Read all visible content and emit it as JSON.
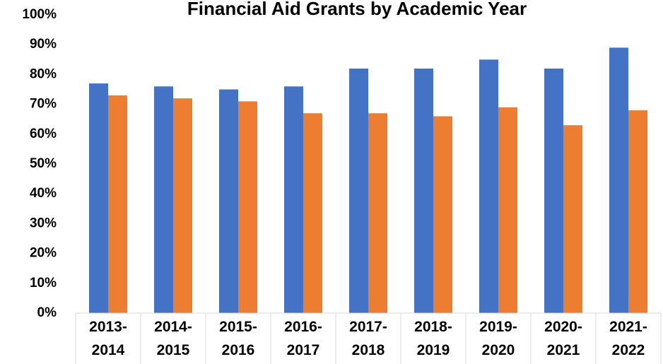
{
  "chart_data": {
    "type": "bar",
    "title": "Financial Aid Grants by Academic Year",
    "categories": [
      "2013-2014",
      "2014-2015",
      "2015-2016",
      "2016-2017",
      "2017-2018",
      "2018-2019",
      "2019-2020",
      "2020-2021",
      "2021-2022"
    ],
    "series": [
      {
        "color": "#4472c4",
        "values": [
          77,
          76,
          75,
          76,
          82,
          82,
          85,
          82,
          89
        ]
      },
      {
        "color": "#ed7d31",
        "values": [
          73,
          72,
          71,
          67,
          67,
          66,
          69,
          63,
          68
        ]
      }
    ],
    "ylim": [
      0,
      100
    ],
    "yticks": [
      {
        "value": 0,
        "label": "0%"
      },
      {
        "value": 10,
        "label": "10%"
      },
      {
        "value": 20,
        "label": "20%"
      },
      {
        "value": 30,
        "label": "30%"
      },
      {
        "value": 40,
        "label": "40%"
      },
      {
        "value": 50,
        "label": "50%"
      },
      {
        "value": 60,
        "label": "60%"
      },
      {
        "value": 70,
        "label": "70%"
      },
      {
        "value": 80,
        "label": "80%"
      },
      {
        "value": 90,
        "label": "90%"
      },
      {
        "value": 100,
        "label": "100%"
      }
    ],
    "grid": false
  }
}
